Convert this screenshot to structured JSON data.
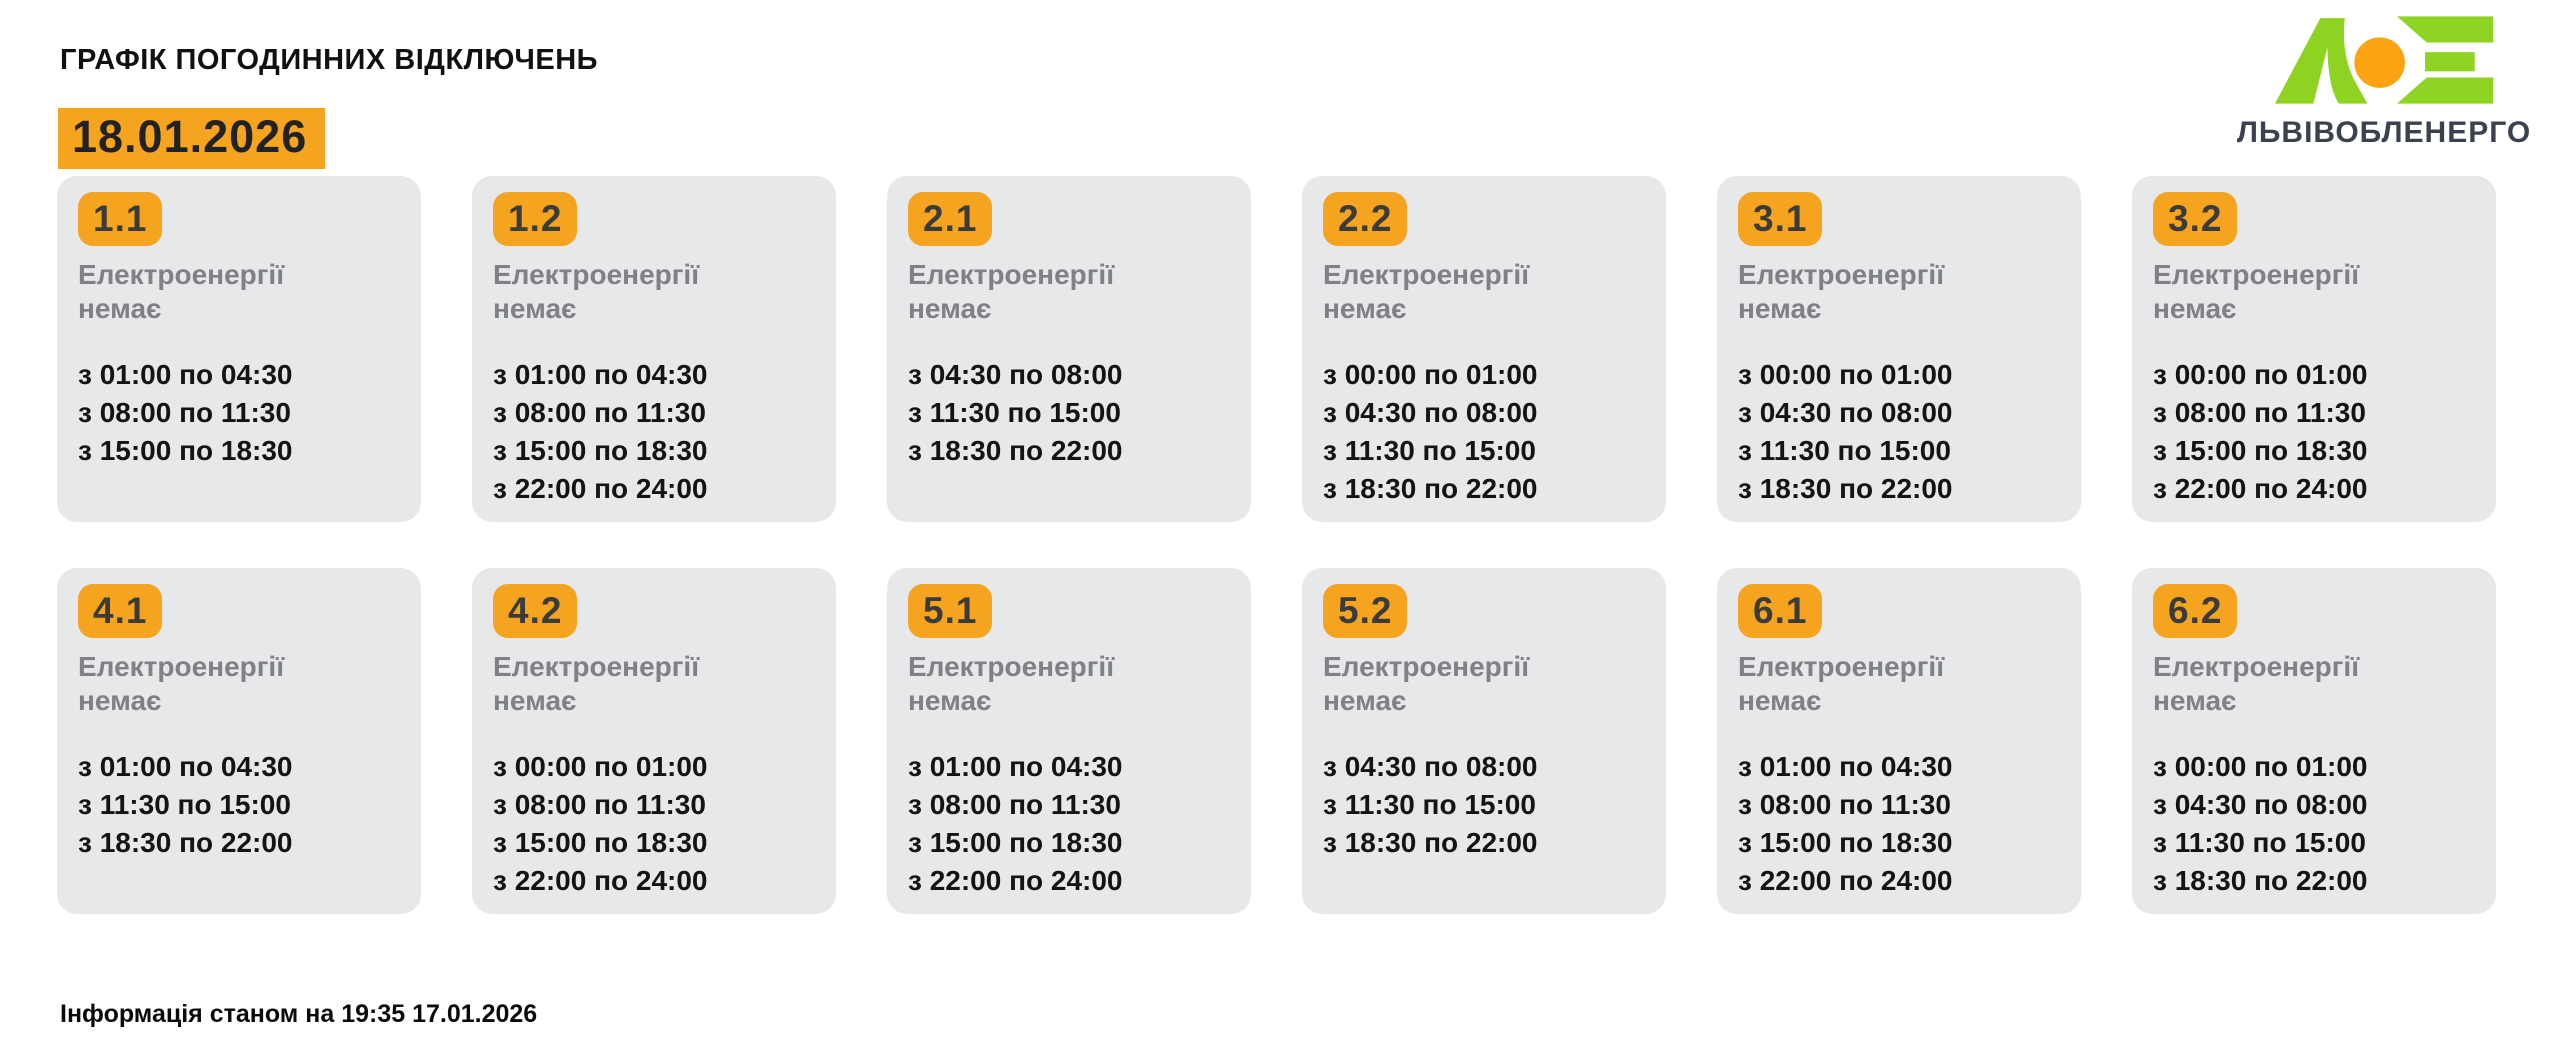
{
  "header": {
    "title": "ГРАФІК ПОГОДИННИХ ВІДКЛЮЧЕНЬ",
    "date": "18.01.2026",
    "company": "ЛЬВІВОБЛЕНЕРГО"
  },
  "footer": {
    "text": "Інформація станом на 19:35 17.01.2026"
  },
  "colors": {
    "accent_orange": "#F5A41F",
    "card_background": "#E6E8E9",
    "badge_text": "#3B3B3B",
    "status_gray": "#7F8184",
    "time_text": "#141414",
    "logo_green": "#8ED321",
    "logo_orange": "#FBA312",
    "logo_text": "#39424E"
  },
  "icons": {
    "logo_mark": "loe-lambda-dot-e-icon"
  },
  "cards": [
    {
      "group": "1.1",
      "status_line1": "Електроенергії",
      "status_line2": "немає",
      "times": [
        "з 01:00 по 04:30",
        "з 08:00 по 11:30",
        "з 15:00 по 18:30"
      ]
    },
    {
      "group": "1.2",
      "status_line1": "Електроенергії",
      "status_line2": "немає",
      "times": [
        "з 01:00 по 04:30",
        "з 08:00 по 11:30",
        "з 15:00 по 18:30",
        "з 22:00 по 24:00"
      ]
    },
    {
      "group": "2.1",
      "status_line1": "Електроенергії",
      "status_line2": "немає",
      "times": [
        "з 04:30 по 08:00",
        "з 11:30 по 15:00",
        "з 18:30 по 22:00"
      ]
    },
    {
      "group": "2.2",
      "status_line1": "Електроенергії",
      "status_line2": "немає",
      "times": [
        "з 00:00 по 01:00",
        "з 04:30 по 08:00",
        "з 11:30 по 15:00",
        "з 18:30 по 22:00"
      ]
    },
    {
      "group": "3.1",
      "status_line1": "Електроенергії",
      "status_line2": "немає",
      "times": [
        "з 00:00 по 01:00",
        "з 04:30 по 08:00",
        "з 11:30 по 15:00",
        "з 18:30 по 22:00"
      ]
    },
    {
      "group": "3.2",
      "status_line1": "Електроенергії",
      "status_line2": "немає",
      "times": [
        "з 00:00 по 01:00",
        "з 08:00 по 11:30",
        "з 15:00 по 18:30",
        "з 22:00 по 24:00"
      ]
    },
    {
      "group": "4.1",
      "status_line1": "Електроенергії",
      "status_line2": "немає",
      "times": [
        "з 01:00 по 04:30",
        "з 11:30 по 15:00",
        "з 18:30 по 22:00"
      ]
    },
    {
      "group": "4.2",
      "status_line1": "Електроенергії",
      "status_line2": "немає",
      "times": [
        "з 00:00 по 01:00",
        "з 08:00 по 11:30",
        "з 15:00 по 18:30",
        "з 22:00 по 24:00"
      ]
    },
    {
      "group": "5.1",
      "status_line1": "Електроенергії",
      "status_line2": "немає",
      "times": [
        "з 01:00 по 04:30",
        "з 08:00 по 11:30",
        "з 15:00 по 18:30",
        "з 22:00 по 24:00"
      ]
    },
    {
      "group": "5.2",
      "status_line1": "Електроенергії",
      "status_line2": "немає",
      "times": [
        "з 04:30 по 08:00",
        "з 11:30 по 15:00",
        "з 18:30 по 22:00"
      ]
    },
    {
      "group": "6.1",
      "status_line1": "Електроенергії",
      "status_line2": "немає",
      "times": [
        "з 01:00 по 04:30",
        "з 08:00 по 11:30",
        "з 15:00 по 18:30",
        "з 22:00 по 24:00"
      ]
    },
    {
      "group": "6.2",
      "status_line1": "Електроенергії",
      "status_line2": "немає",
      "times": [
        "з 00:00 по 01:00",
        "з 04:30 по 08:00",
        "з 11:30 по 15:00",
        "з 18:30 по 22:00"
      ]
    }
  ]
}
